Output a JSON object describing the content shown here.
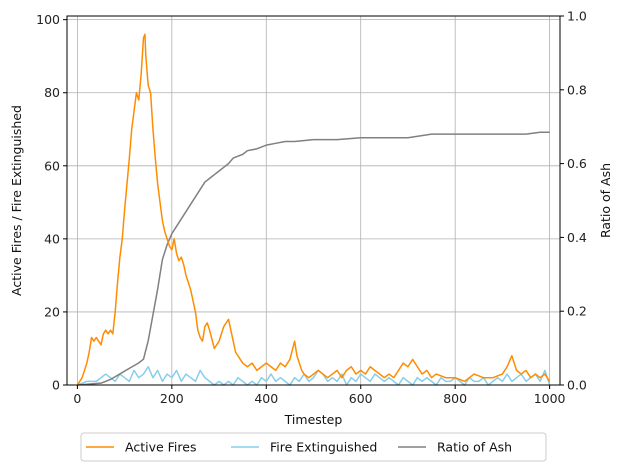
{
  "chart_data": {
    "type": "line",
    "xlabel": "Timestep",
    "ylabel": "Active Fires / Fire Extinguished",
    "y2label": "Ratio of Ash",
    "xlim": [
      -22,
      1022
    ],
    "ylim": [
      0,
      101
    ],
    "y2lim": [
      0,
      1.0
    ],
    "xticks": [
      0,
      200,
      400,
      600,
      800,
      1000
    ],
    "yticks": [
      0,
      20,
      40,
      60,
      80,
      100
    ],
    "y2ticks": [
      0.0,
      0.2,
      0.4,
      0.6,
      0.8,
      1.0
    ],
    "xtick_labels": [
      "0",
      "200",
      "400",
      "600",
      "800",
      "1000"
    ],
    "ytick_labels": [
      "0",
      "20",
      "40",
      "60",
      "80",
      "100"
    ],
    "y2tick_labels": [
      "0.0",
      "0.2",
      "0.4",
      "0.6",
      "0.8",
      "1.0"
    ],
    "grid": true,
    "legend_placement": "bottom-center-outside",
    "colors": {
      "active": "#ff8c00",
      "extinguished": "#87ceeb",
      "ash": "#808080"
    },
    "series": [
      {
        "name": "Active Fires",
        "axis": "left",
        "x": [
          0,
          10,
          20,
          25,
          30,
          35,
          40,
          50,
          55,
          60,
          65,
          70,
          75,
          80,
          85,
          90,
          95,
          100,
          105,
          110,
          115,
          120,
          125,
          130,
          135,
          140,
          143,
          145,
          148,
          150,
          155,
          160,
          165,
          170,
          175,
          180,
          185,
          190,
          195,
          200,
          205,
          210,
          215,
          220,
          225,
          230,
          240,
          250,
          255,
          260,
          265,
          270,
          275,
          280,
          290,
          300,
          310,
          320,
          325,
          330,
          335,
          340,
          345,
          350,
          360,
          370,
          380,
          390,
          400,
          410,
          420,
          430,
          440,
          450,
          460,
          465,
          470,
          475,
          480,
          490,
          500,
          510,
          520,
          530,
          540,
          550,
          560,
          570,
          580,
          590,
          600,
          610,
          620,
          630,
          640,
          650,
          660,
          670,
          680,
          690,
          700,
          710,
          720,
          730,
          740,
          750,
          760,
          780,
          800,
          820,
          840,
          860,
          880,
          900,
          910,
          920,
          925,
          930,
          940,
          950,
          960,
          970,
          980,
          990,
          1000
        ],
        "values": [
          0,
          2,
          6,
          9,
          13,
          12,
          13,
          11,
          14,
          15,
          14,
          15,
          14,
          20,
          28,
          35,
          40,
          48,
          55,
          62,
          70,
          75,
          80,
          78,
          85,
          95,
          96,
          90,
          85,
          82,
          80,
          70,
          62,
          55,
          50,
          45,
          42,
          40,
          38,
          37,
          40,
          36,
          34,
          35,
          33,
          30,
          26,
          20,
          15,
          13,
          12,
          16,
          17,
          15,
          10,
          12,
          16,
          18,
          15,
          12,
          9,
          8,
          7,
          6,
          5,
          6,
          4,
          5,
          6,
          5,
          4,
          6,
          5,
          7,
          12,
          8,
          6,
          4,
          3,
          2,
          3,
          4,
          3,
          2,
          3,
          4,
          2,
          4,
          5,
          3,
          4,
          3,
          5,
          4,
          3,
          2,
          3,
          2,
          4,
          6,
          5,
          7,
          5,
          3,
          4,
          2,
          3,
          2,
          2,
          1,
          3,
          2,
          2,
          3,
          5,
          8,
          6,
          4,
          3,
          4,
          2,
          3,
          2,
          3,
          1
        ]
      },
      {
        "name": "Fire Extinguished",
        "axis": "left",
        "x": [
          0,
          20,
          40,
          60,
          70,
          80,
          90,
          100,
          110,
          120,
          130,
          140,
          150,
          160,
          170,
          180,
          190,
          200,
          210,
          220,
          230,
          240,
          250,
          260,
          270,
          280,
          290,
          300,
          310,
          320,
          330,
          340,
          350,
          360,
          370,
          380,
          390,
          400,
          410,
          420,
          430,
          440,
          450,
          460,
          470,
          480,
          490,
          500,
          510,
          520,
          530,
          540,
          550,
          560,
          570,
          580,
          590,
          600,
          610,
          620,
          630,
          640,
          650,
          660,
          670,
          680,
          690,
          700,
          710,
          720,
          730,
          740,
          750,
          760,
          770,
          780,
          790,
          800,
          810,
          820,
          830,
          840,
          850,
          860,
          870,
          880,
          890,
          900,
          910,
          920,
          930,
          940,
          950,
          960,
          970,
          980,
          990,
          1000
        ],
        "values": [
          0,
          1,
          1,
          3,
          2,
          1,
          3,
          2,
          1,
          4,
          2,
          3,
          5,
          2,
          4,
          1,
          3,
          2,
          4,
          1,
          3,
          2,
          1,
          4,
          2,
          1,
          0,
          1,
          0,
          1,
          0,
          2,
          1,
          0,
          1,
          0,
          2,
          1,
          3,
          1,
          2,
          1,
          0,
          2,
          1,
          3,
          1,
          2,
          4,
          3,
          1,
          2,
          1,
          3,
          0,
          2,
          1,
          3,
          2,
          1,
          3,
          2,
          1,
          2,
          1,
          0,
          2,
          1,
          0,
          2,
          1,
          2,
          1,
          0,
          2,
          1,
          1,
          2,
          1,
          0,
          2,
          1,
          1,
          2,
          0,
          1,
          2,
          1,
          3,
          1,
          2,
          3,
          1,
          2,
          3,
          1,
          4,
          0
        ]
      },
      {
        "name": "Ratio of Ash",
        "axis": "right",
        "x": [
          0,
          50,
          70,
          90,
          110,
          130,
          140,
          150,
          160,
          170,
          180,
          190,
          200,
          210,
          220,
          230,
          240,
          250,
          260,
          270,
          280,
          290,
          300,
          310,
          320,
          330,
          340,
          350,
          360,
          380,
          400,
          420,
          440,
          460,
          500,
          550,
          600,
          650,
          700,
          750,
          800,
          850,
          900,
          950,
          980,
          1000
        ],
        "values": [
          0.0,
          0.005,
          0.015,
          0.03,
          0.045,
          0.06,
          0.07,
          0.12,
          0.19,
          0.26,
          0.34,
          0.38,
          0.41,
          0.43,
          0.45,
          0.47,
          0.49,
          0.51,
          0.53,
          0.55,
          0.56,
          0.57,
          0.58,
          0.59,
          0.6,
          0.615,
          0.62,
          0.625,
          0.635,
          0.64,
          0.65,
          0.655,
          0.66,
          0.66,
          0.665,
          0.665,
          0.67,
          0.67,
          0.67,
          0.68,
          0.68,
          0.68,
          0.68,
          0.68,
          0.685,
          0.685
        ]
      }
    ]
  }
}
